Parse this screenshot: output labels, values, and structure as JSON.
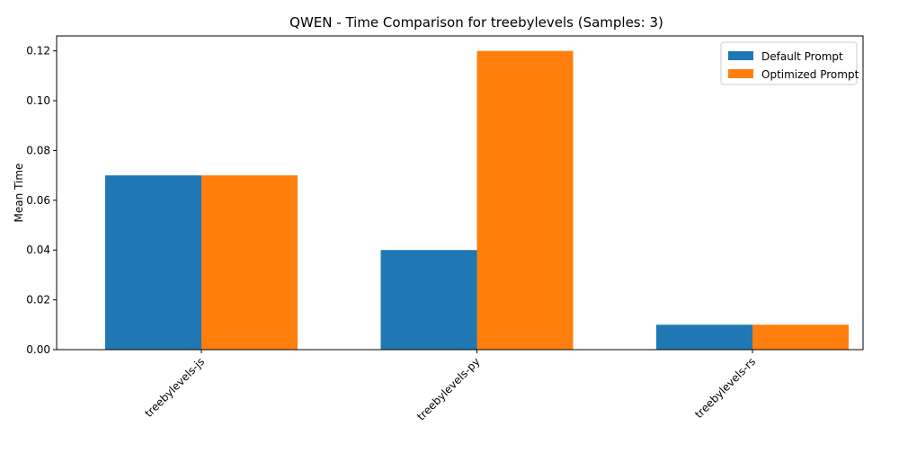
{
  "chart_data": {
    "type": "bar",
    "title": "QWEN - Time Comparison for treebylevels (Samples: 3)",
    "xlabel": "",
    "ylabel": "Mean Time",
    "categories": [
      "treebylevels-js",
      "treebylevels-py",
      "treebylevels-rs"
    ],
    "series": [
      {
        "name": "Default Prompt",
        "values": [
          0.07,
          0.04,
          0.01
        ],
        "color": "#1f77b4"
      },
      {
        "name": "Optimized Prompt",
        "values": [
          0.07,
          0.12,
          0.01
        ],
        "color": "#ff7f0e"
      }
    ],
    "ylim": [
      0,
      0.126
    ],
    "yticks": [
      0.0,
      0.02,
      0.04,
      0.06,
      0.08,
      0.1,
      0.12
    ],
    "ytick_labels": [
      "0.00",
      "0.02",
      "0.04",
      "0.06",
      "0.08",
      "0.10",
      "0.12"
    ],
    "grid": false,
    "legend_position": "top-right",
    "xtick_rotation_deg": 45
  }
}
